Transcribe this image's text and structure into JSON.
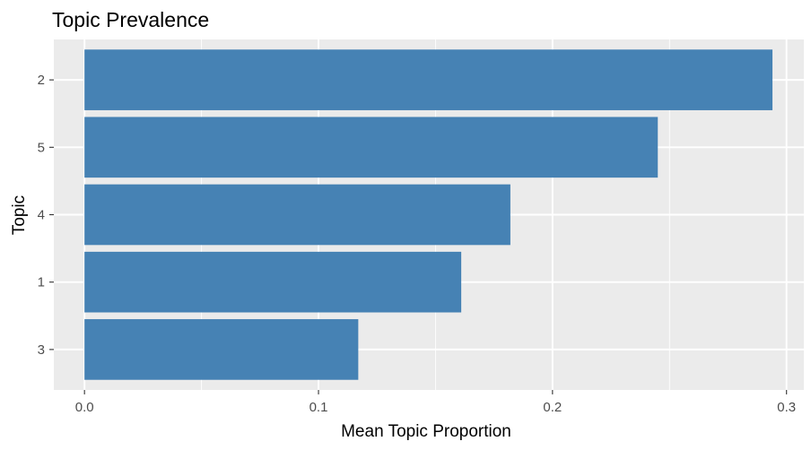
{
  "chart_data": {
    "type": "bar",
    "orientation": "horizontal",
    "title": "Topic Prevalence",
    "xlabel": "Mean Topic Proportion",
    "ylabel": "Topic",
    "categories": [
      "2",
      "5",
      "4",
      "1",
      "3"
    ],
    "values": [
      0.294,
      0.245,
      0.182,
      0.161,
      0.117
    ],
    "xlim": [
      -0.0131,
      0.3074
    ],
    "x_ticks": [
      0.0,
      0.1,
      0.2,
      0.3
    ],
    "x_tick_labels": [
      "0.0",
      "0.1",
      "0.2",
      "0.3"
    ],
    "grid": true,
    "bar_color": "#4682B4",
    "panel_background": "#EBEBEB"
  }
}
